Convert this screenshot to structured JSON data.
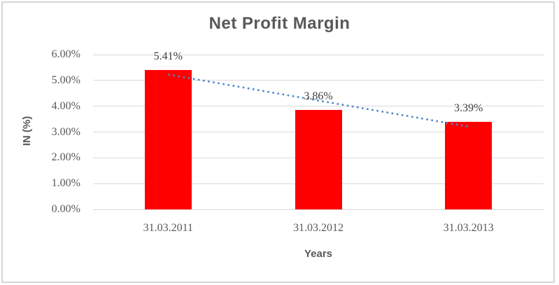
{
  "chart_data": {
    "type": "bar",
    "title": "Net Profit Margin",
    "xlabel": "Years",
    "ylabel": "IN (%)",
    "categories": [
      "31.03.2011",
      "31.03.2012",
      "31.03.2013"
    ],
    "values": [
      5.41,
      3.86,
      3.39
    ],
    "data_labels": [
      "5.41%",
      "3.86%",
      "3.39%"
    ],
    "y_ticks": [
      "0.00%",
      "1.00%",
      "2.00%",
      "3.00%",
      "4.00%",
      "5.00%",
      "6.00%"
    ],
    "ylim": [
      0,
      6
    ],
    "grid": true,
    "legend": "none",
    "series_name": "Net Profit Margin",
    "trendline": {
      "type": "linear",
      "style": "dotted"
    }
  },
  "colors": {
    "bar": "#ff0000",
    "trendline": "#4f87c9",
    "title_text": "#595959",
    "axis_text": "#595959",
    "data_label_text": "#404040",
    "gridline": "#d9d9d9",
    "frame_border": "#d6d6d6",
    "background": "#ffffff"
  }
}
